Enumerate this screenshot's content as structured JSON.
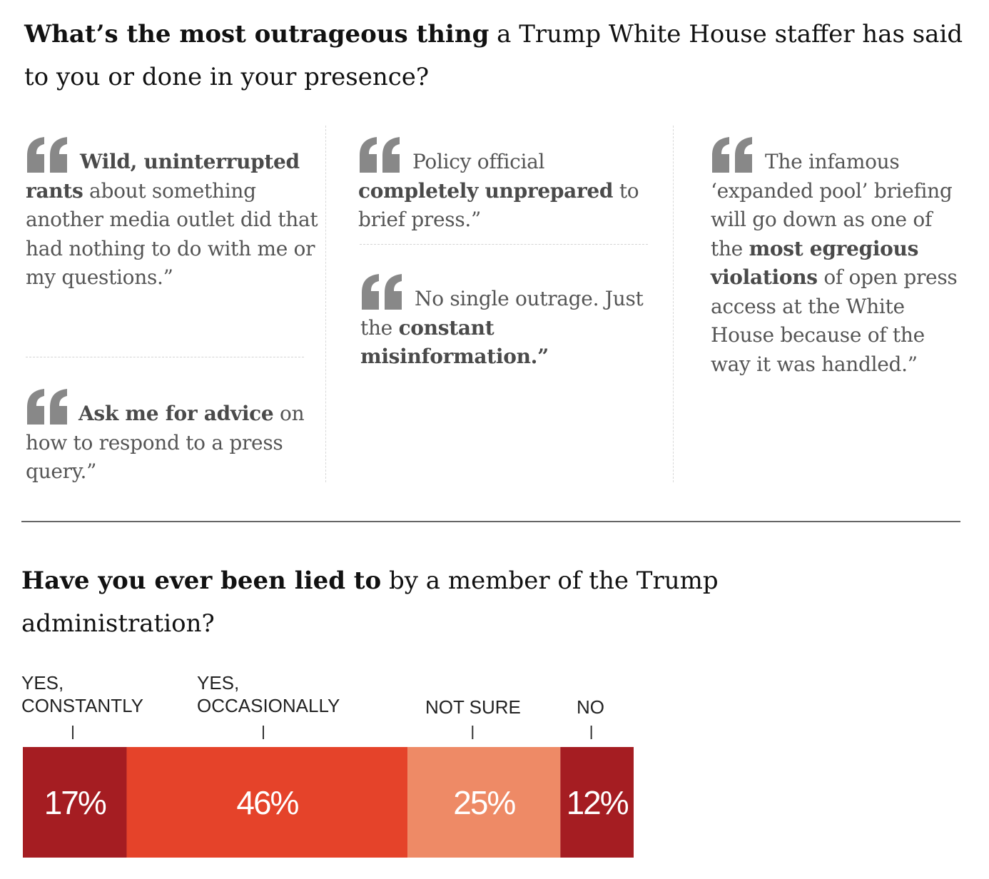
{
  "question1": {
    "bold": "What’s the most outrageous thing",
    "rest": " a Trump White House staffer has said to you or done in your presence?"
  },
  "quotes": {
    "q1": {
      "a": "Wild, ",
      "b": "uninterrupted rants",
      "c": " about something another media outlet did that had nothing to do with me or my questions.”"
    },
    "q2": {
      "a": "Ask me for advice",
      "b": " on how to respond to a press query.”"
    },
    "q3": {
      "a": "Policy official ",
      "b": "completely unprepared",
      "c": " to brief press.”"
    },
    "q4": {
      "a": "No single outrage. Just the ",
      "b": "constant misinformation.”"
    },
    "q5": {
      "a": "The infamous ‘expanded pool’ briefing will go down as one of the ",
      "b": "most egregious violations",
      "c": " of open press access at the White House because of the way it was handled.”"
    }
  },
  "question2": {
    "bold": "Have you ever been lied to",
    "rest": " by a member of the Trump administration?"
  },
  "colors": {
    "quote_mark": "#888888",
    "constantly": "#A51D22",
    "occasionally": "#E5432A",
    "not_sure": "#EE8A66",
    "no": "#A51D22"
  },
  "chart_data": {
    "type": "bar",
    "orientation": "horizontal-stacked",
    "categories": [
      {
        "label_lines": [
          "YES,",
          "CONSTANTLY"
        ],
        "value": 17,
        "label": "17%",
        "color_key": "constantly"
      },
      {
        "label_lines": [
          "YES,",
          "OCCASIONALLY"
        ],
        "value": 46,
        "label": "46%",
        "color_key": "occasionally"
      },
      {
        "label_lines": [
          "NOT SURE"
        ],
        "value": 25,
        "label": "25%",
        "color_key": "not_sure"
      },
      {
        "label_lines": [
          "NO"
        ],
        "value": 12,
        "label": "12%",
        "color_key": "no"
      }
    ],
    "total": 100
  }
}
